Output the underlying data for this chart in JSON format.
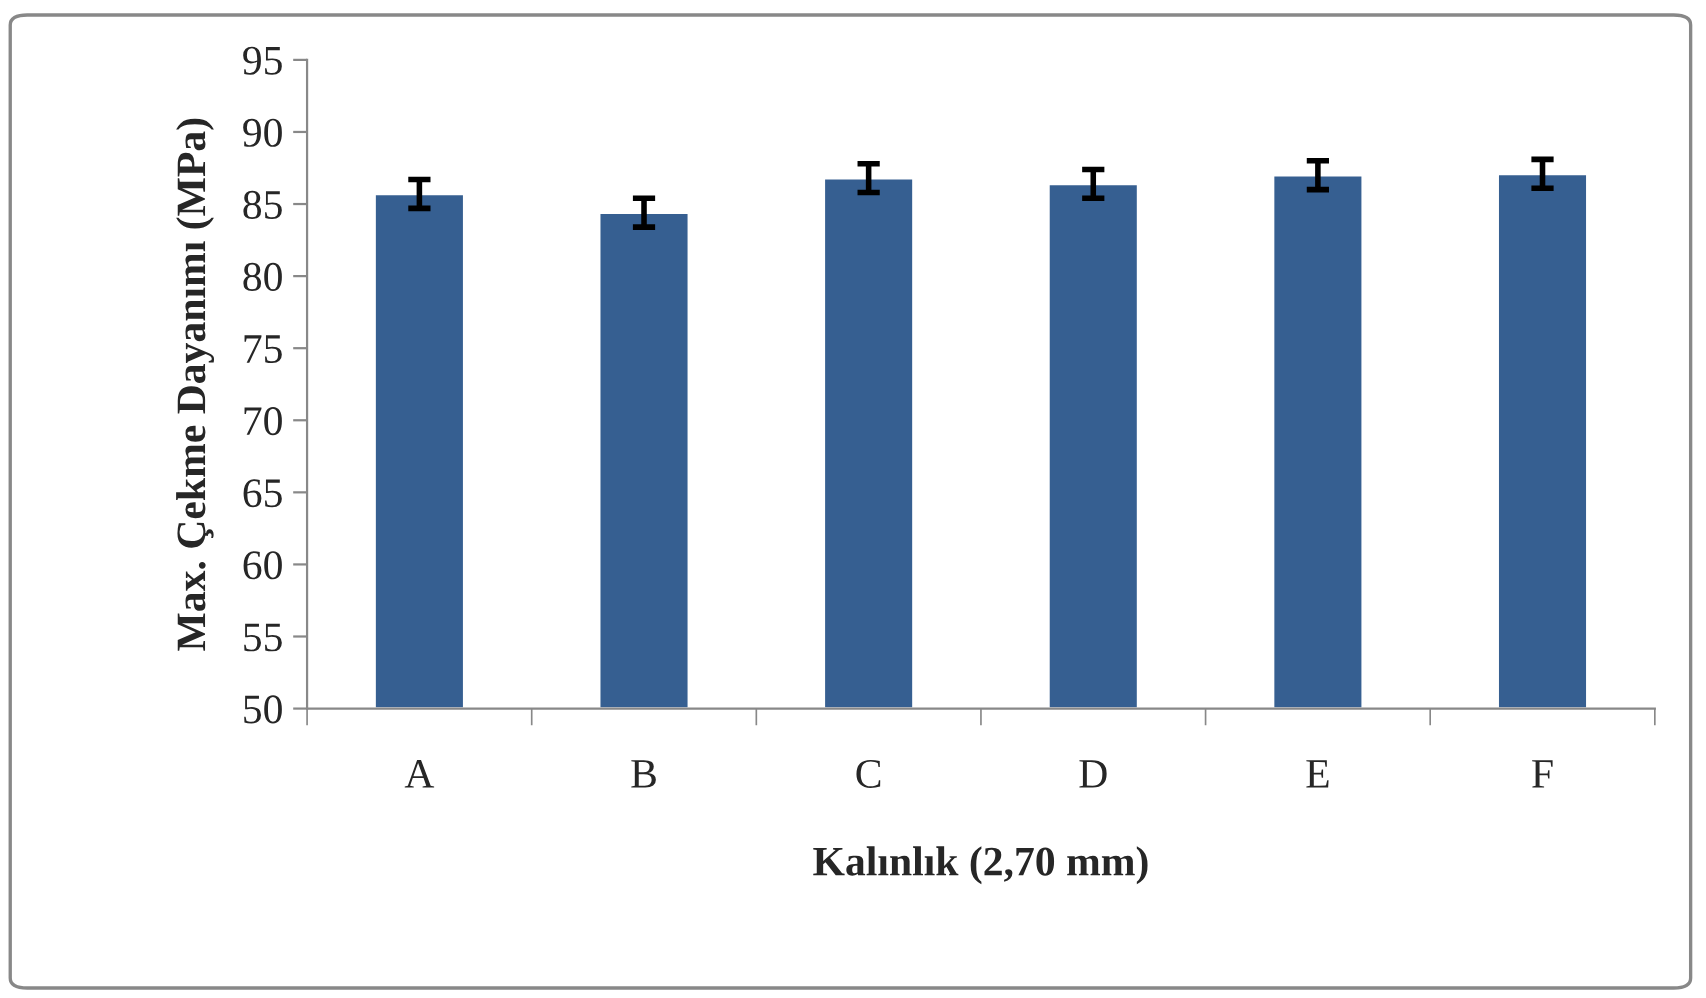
{
  "chart_data": {
    "type": "bar",
    "xlabel": "Kalınlık (2,70 mm)",
    "ylabel": "Max. Çekme Dayanımı (MPa)",
    "categories": [
      "A",
      "B",
      "C",
      "D",
      "E",
      "F"
    ],
    "values": [
      85.7,
      84.4,
      86.8,
      86.4,
      87.0,
      87.1
    ],
    "errors": [
      1.0,
      1.0,
      1.0,
      1.0,
      1.0,
      1.0
    ],
    "color": "#365f91",
    "ylim": [
      50,
      95
    ],
    "yticks": [
      50,
      55,
      60,
      65,
      70,
      75,
      80,
      85,
      90,
      95
    ],
    "grid": false
  }
}
